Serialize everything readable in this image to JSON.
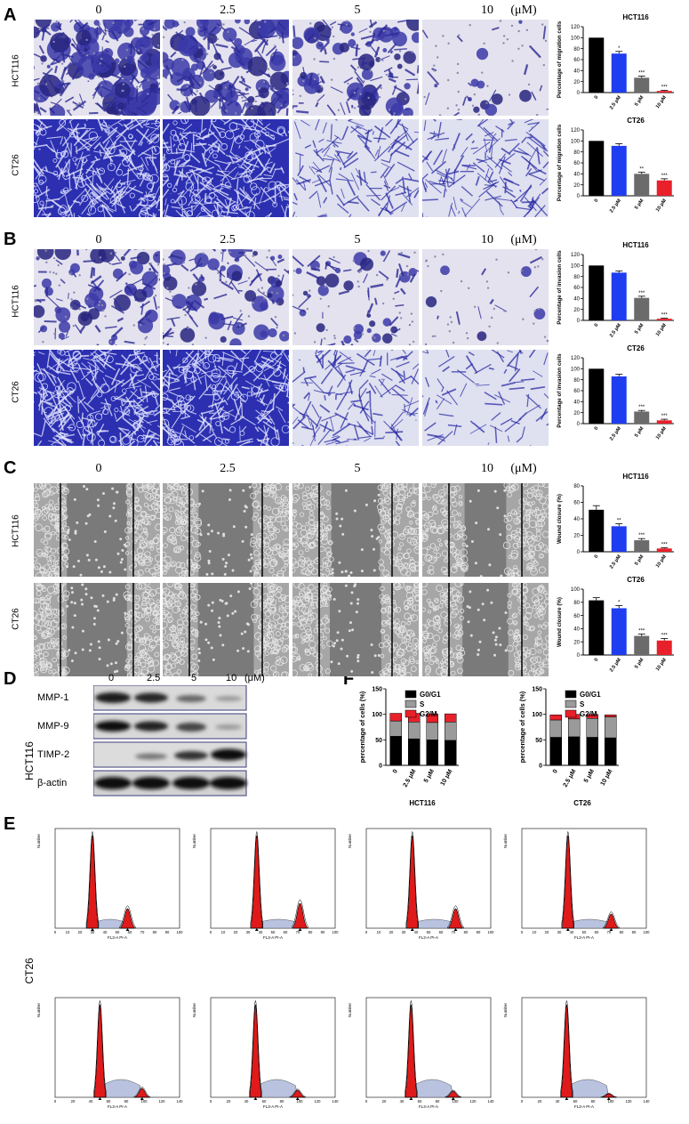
{
  "panels": [
    "A",
    "B",
    "C",
    "D",
    "E",
    "F"
  ],
  "concentrations": [
    "0",
    "2.5",
    "5",
    "10"
  ],
  "conc_unit": "(μM)",
  "cell_lines": [
    "HCT116",
    "CT26"
  ],
  "bar_x_ticks": [
    "0",
    "2.5 μM",
    "5 μM",
    "10 μM"
  ],
  "bar_colors": [
    "#000000",
    "#1f3df0",
    "#6b6b6b",
    "#e8202a"
  ],
  "wb": {
    "labels": [
      "MMP-1",
      "MMP-9",
      "TIMP-2",
      "β-actin"
    ],
    "conc": [
      "0",
      "2.5",
      "5",
      "10"
    ],
    "unit": "(μM)"
  },
  "flow": {
    "x_label": "FL3-A PI-A",
    "y_label": "Number",
    "hct_x_ticks": [
      "0",
      "10",
      "20",
      "30",
      "40",
      "50",
      "60",
      "70",
      "80",
      "90",
      "100"
    ],
    "ct_x_ticks": [
      "0",
      "20",
      "40",
      "60",
      "80",
      "100",
      "120",
      "140"
    ]
  },
  "stack_legend": [
    "G0/G1",
    "S",
    "G2/M"
  ],
  "stack_ylabel": "percentage of cells (%)",
  "stack_colors": [
    "#000000",
    "#9a9a9a",
    "#e8202a"
  ],
  "chart_data": [
    {
      "type": "bar",
      "title": "HCT116",
      "ylabel": "Percentage of migration cells",
      "categories": [
        "0",
        "2.5 μM",
        "5 μM",
        "10 μM"
      ],
      "values": [
        100,
        71,
        27,
        3
      ],
      "errors": [
        0,
        4,
        3,
        1
      ],
      "sig": [
        "",
        "*",
        "***",
        "***"
      ],
      "ylim": [
        0,
        120
      ],
      "yticks": [
        0,
        20,
        40,
        60,
        80,
        100,
        120
      ]
    },
    {
      "type": "bar",
      "title": "CT26",
      "ylabel": "Percentage of migration cells",
      "categories": [
        "0",
        "2.5 μM",
        "5 μM",
        "10 μM"
      ],
      "values": [
        100,
        91,
        40,
        28
      ],
      "errors": [
        0,
        4,
        3,
        3
      ],
      "sig": [
        "",
        "",
        "**",
        "***"
      ],
      "ylim": [
        0,
        120
      ],
      "yticks": [
        0,
        20,
        40,
        60,
        80,
        100,
        120
      ]
    },
    {
      "type": "bar",
      "title": "HCT116",
      "ylabel": "Percentage of invasion cells",
      "categories": [
        "0",
        "2.5 μM",
        "5 μM",
        "10 μM"
      ],
      "values": [
        100,
        87,
        41,
        3
      ],
      "errors": [
        0,
        3,
        3,
        1
      ],
      "sig": [
        "",
        "",
        "***",
        "***"
      ],
      "ylim": [
        0,
        120
      ],
      "yticks": [
        0,
        20,
        40,
        60,
        80,
        100,
        120
      ]
    },
    {
      "type": "bar",
      "title": "CT26",
      "ylabel": "Percentage of invasion cells",
      "categories": [
        "0",
        "2.5 μM",
        "5 μM",
        "10 μM"
      ],
      "values": [
        100,
        86,
        22,
        6
      ],
      "errors": [
        0,
        4,
        2,
        2
      ],
      "sig": [
        "",
        "",
        "***",
        "***"
      ],
      "ylim": [
        0,
        120
      ],
      "yticks": [
        0,
        20,
        40,
        60,
        80,
        100,
        120
      ]
    },
    {
      "type": "bar",
      "title": "HCT116",
      "ylabel": "Wound closure (%)",
      "categories": [
        "0",
        "2.5 μM",
        "5 μM",
        "10 μM"
      ],
      "values": [
        51,
        31,
        14,
        4
      ],
      "errors": [
        5,
        3,
        2,
        1
      ],
      "sig": [
        "",
        "**",
        "***",
        "***"
      ],
      "ylim": [
        0,
        80
      ],
      "yticks": [
        0,
        20,
        40,
        60,
        80
      ]
    },
    {
      "type": "bar",
      "title": "CT26",
      "ylabel": "Wound closure (%)",
      "categories": [
        "0",
        "2.5 μM",
        "5 μM",
        "10 μM"
      ],
      "values": [
        83,
        71,
        29,
        22
      ],
      "errors": [
        4,
        4,
        3,
        3
      ],
      "sig": [
        "",
        "*",
        "***",
        "***"
      ],
      "ylim": [
        0,
        100
      ],
      "yticks": [
        0,
        20,
        40,
        60,
        80,
        100
      ]
    },
    {
      "type": "bar",
      "stacked": true,
      "xlabel": "HCT116",
      "ylabel": "percentage of cells (%)",
      "categories": [
        "0",
        "2.5 μM",
        "5 μM",
        "10 μM"
      ],
      "series": [
        {
          "name": "G0/G1",
          "values": [
            57,
            52,
            50,
            49
          ]
        },
        {
          "name": "S",
          "values": [
            30,
            33,
            34,
            36
          ]
        },
        {
          "name": "G2/M",
          "values": [
            15,
            17,
            17,
            16
          ]
        }
      ],
      "ylim": [
        0,
        150
      ],
      "yticks": [
        0,
        50,
        100,
        150
      ]
    },
    {
      "type": "bar",
      "stacked": true,
      "xlabel": "CT26",
      "ylabel": "percentage of cells (%)",
      "categories": [
        "0",
        "2.5 μM",
        "5 μM",
        "10 μM"
      ],
      "series": [
        {
          "name": "G0/G1",
          "values": [
            55,
            56,
            55,
            54
          ]
        },
        {
          "name": "S",
          "values": [
            34,
            35,
            37,
            41
          ]
        },
        {
          "name": "G2/M",
          "values": [
            10,
            9,
            8,
            4
          ]
        }
      ],
      "ylim": [
        0,
        150
      ],
      "yticks": [
        0,
        50,
        100,
        150
      ]
    }
  ]
}
